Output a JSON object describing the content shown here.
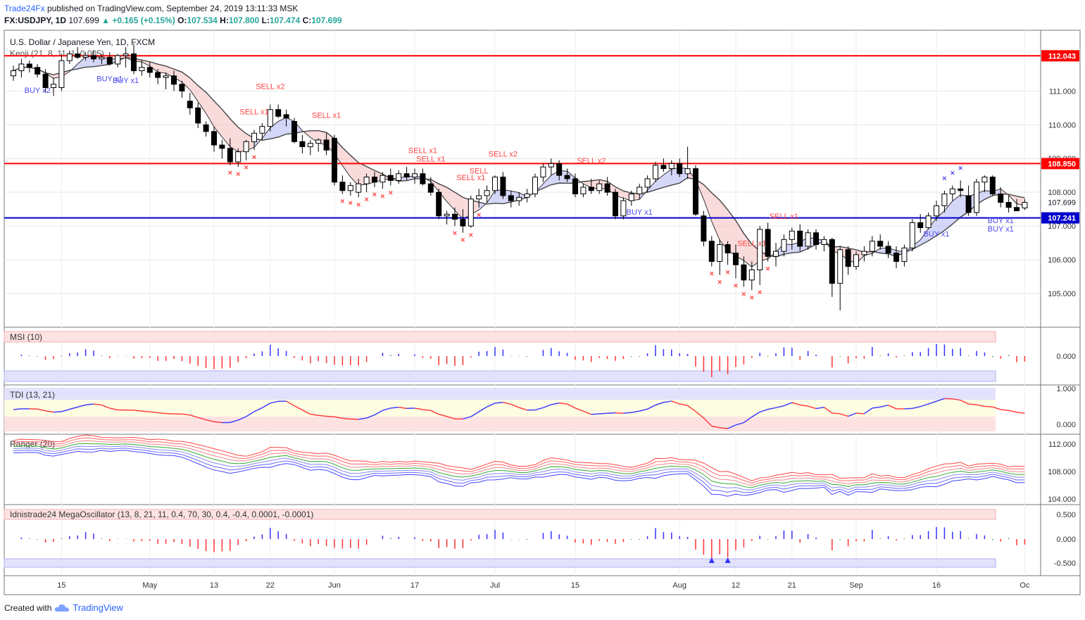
{
  "header": {
    "author": "Trade24Fx",
    "published_text": "published on TradingView.com, September 24, 2019 13:11:33 MSK",
    "symbol": "FX:USDJPY, 1D",
    "last": "107.699",
    "change": "+0.165 (+0.15%)",
    "open_label": "O:",
    "open": "107.534",
    "high_label": "H:",
    "high": "107.800",
    "low_label": "L:",
    "low": "107.474",
    "close_label": "C:",
    "close": "107.699"
  },
  "footer": {
    "created_with": "Created with",
    "brand": "TradingView"
  },
  "colors": {
    "up": "#ffffff",
    "down": "#000000",
    "level_red": "#ff0000",
    "level_blue": "#0000cc",
    "buy": "#3f3fff",
    "sell": "#ff4444",
    "grid": "#e6e6e6",
    "axis": "#555555"
  },
  "chart_data": {
    "type": "candlestick",
    "title": "U.S. Dollar / Japanese Yen, 1D, FXCM",
    "indicator": "Kenji (21, 8, 11, 1, 0.005)",
    "ylim": [
      104.0,
      112.8
    ],
    "y_ticks": [
      "111.000",
      "110.000",
      "109.000",
      "108.000",
      "107.000",
      "106.000",
      "105.000"
    ],
    "x_ticks": [
      {
        "label": "15",
        "i": 6
      },
      {
        "label": "May",
        "i": 17
      },
      {
        "label": "13",
        "i": 25
      },
      {
        "label": "22",
        "i": 32
      },
      {
        "label": "Jun",
        "i": 40
      },
      {
        "label": "17",
        "i": 50
      },
      {
        "label": "Jul",
        "i": 60
      },
      {
        "label": "15",
        "i": 70
      },
      {
        "label": "Aug",
        "i": 83
      },
      {
        "label": "12",
        "i": 90
      },
      {
        "label": "21",
        "i": 97
      },
      {
        "label": "Sep",
        "i": 105
      },
      {
        "label": "16",
        "i": 115
      },
      {
        "label": "Oc",
        "i": 126
      }
    ],
    "levels": [
      {
        "value": 112.043,
        "label": "112.043",
        "color": "#ff0000"
      },
      {
        "value": 108.85,
        "label": "108.850",
        "color": "#ff0000"
      },
      {
        "value": 107.241,
        "label": "107.241",
        "color": "#0000cc"
      }
    ],
    "last_price_label": "107.699",
    "candles": [
      [
        111.45,
        111.75,
        111.3,
        111.6
      ],
      [
        111.6,
        111.95,
        111.4,
        111.8
      ],
      [
        111.8,
        111.9,
        111.55,
        111.7
      ],
      [
        111.7,
        111.8,
        111.4,
        111.5
      ],
      [
        111.5,
        111.65,
        110.95,
        111.1
      ],
      [
        111.1,
        111.4,
        110.85,
        111.2
      ],
      [
        111.1,
        112.1,
        111.0,
        111.9
      ],
      [
        111.9,
        112.2,
        111.8,
        112.1
      ],
      [
        112.1,
        112.3,
        111.95,
        112.0
      ],
      [
        112.0,
        112.15,
        111.9,
        112.05
      ],
      [
        112.05,
        112.2,
        111.85,
        111.95
      ],
      [
        111.95,
        112.1,
        111.8,
        112.0
      ],
      [
        112.0,
        112.15,
        111.75,
        111.8
      ],
      [
        111.8,
        112.1,
        111.7,
        112.05
      ],
      [
        112.05,
        112.3,
        111.7,
        112.1
      ],
      [
        112.1,
        112.4,
        111.5,
        111.6
      ],
      [
        111.6,
        111.9,
        111.45,
        111.7
      ],
      [
        111.7,
        111.85,
        111.4,
        111.55
      ],
      [
        111.55,
        111.65,
        111.2,
        111.4
      ],
      [
        111.4,
        111.55,
        111.05,
        111.45
      ],
      [
        111.45,
        111.6,
        111.0,
        111.2
      ],
      [
        111.2,
        111.3,
        110.8,
        111.0
      ],
      [
        110.7,
        110.95,
        110.3,
        110.5
      ],
      [
        110.5,
        110.65,
        109.9,
        110.05
      ],
      [
        110.0,
        110.1,
        109.65,
        109.8
      ],
      [
        109.8,
        109.95,
        109.2,
        109.4
      ],
      [
        109.4,
        109.55,
        109.0,
        109.3
      ],
      [
        109.3,
        109.6,
        108.8,
        108.9
      ],
      [
        108.9,
        109.3,
        108.75,
        109.2
      ],
      [
        109.2,
        109.55,
        108.95,
        109.5
      ],
      [
        109.5,
        109.85,
        109.25,
        109.75
      ],
      [
        109.75,
        110.05,
        109.55,
        109.95
      ],
      [
        109.95,
        110.6,
        109.8,
        110.45
      ],
      [
        110.45,
        110.6,
        110.2,
        110.25
      ],
      [
        110.3,
        110.45,
        109.95,
        110.2
      ],
      [
        110.1,
        110.2,
        109.45,
        109.5
      ],
      [
        109.5,
        109.7,
        109.15,
        109.35
      ],
      [
        109.35,
        109.55,
        109.1,
        109.45
      ],
      [
        109.45,
        109.6,
        109.2,
        109.55
      ],
      [
        109.55,
        109.75,
        109.1,
        109.25
      ],
      [
        109.6,
        109.7,
        108.2,
        108.3
      ],
      [
        108.3,
        108.5,
        107.95,
        108.05
      ],
      [
        108.05,
        108.3,
        107.9,
        108.2
      ],
      [
        108.0,
        108.4,
        107.85,
        108.25
      ],
      [
        108.25,
        108.55,
        108.0,
        108.45
      ],
      [
        108.45,
        108.6,
        108.15,
        108.3
      ],
      [
        108.3,
        108.6,
        108.1,
        108.5
      ],
      [
        108.5,
        108.7,
        108.2,
        108.35
      ],
      [
        108.35,
        108.65,
        108.25,
        108.55
      ],
      [
        108.55,
        108.75,
        108.35,
        108.45
      ],
      [
        108.45,
        108.7,
        108.25,
        108.55
      ],
      [
        108.55,
        108.7,
        108.2,
        108.25
      ],
      [
        108.25,
        108.45,
        107.9,
        108.0
      ],
      [
        108.0,
        108.1,
        107.2,
        107.3
      ],
      [
        107.3,
        107.45,
        107.05,
        107.35
      ],
      [
        107.35,
        107.55,
        107.0,
        107.2
      ],
      [
        107.2,
        107.5,
        106.8,
        107.0
      ],
      [
        107.0,
        107.9,
        106.95,
        107.8
      ],
      [
        107.8,
        108.1,
        107.55,
        107.9
      ],
      [
        107.9,
        108.2,
        107.7,
        108.05
      ],
      [
        108.05,
        108.5,
        107.95,
        108.45
      ],
      [
        108.45,
        108.6,
        107.8,
        107.9
      ],
      [
        107.9,
        108.05,
        107.55,
        107.75
      ],
      [
        107.75,
        108.0,
        107.6,
        107.85
      ],
      [
        107.85,
        108.1,
        107.7,
        107.95
      ],
      [
        107.95,
        108.55,
        107.85,
        108.45
      ],
      [
        108.45,
        108.85,
        108.3,
        108.75
      ],
      [
        108.75,
        109.0,
        108.5,
        108.85
      ],
      [
        108.85,
        108.95,
        108.35,
        108.5
      ],
      [
        108.5,
        108.7,
        108.3,
        108.4
      ],
      [
        108.4,
        108.55,
        107.85,
        107.95
      ],
      [
        107.95,
        108.25,
        107.85,
        108.15
      ],
      [
        108.15,
        108.4,
        107.95,
        108.05
      ],
      [
        108.05,
        108.35,
        107.95,
        108.25
      ],
      [
        108.25,
        108.45,
        107.9,
        108.0
      ],
      [
        108.0,
        108.1,
        107.2,
        107.3
      ],
      [
        107.3,
        107.85,
        107.2,
        107.75
      ],
      [
        107.75,
        108.05,
        107.6,
        107.95
      ],
      [
        107.95,
        108.25,
        107.8,
        108.15
      ],
      [
        108.15,
        108.5,
        108.0,
        108.4
      ],
      [
        108.4,
        108.9,
        108.3,
        108.8
      ],
      [
        108.8,
        109.0,
        108.6,
        108.7
      ],
      [
        108.7,
        108.95,
        108.5,
        108.85
      ],
      [
        108.85,
        109.0,
        108.45,
        108.55
      ],
      [
        108.55,
        109.35,
        108.4,
        108.7
      ],
      [
        108.7,
        108.8,
        107.3,
        107.35
      ],
      [
        107.3,
        107.45,
        106.4,
        106.55
      ],
      [
        106.55,
        106.7,
        105.8,
        105.95
      ],
      [
        105.95,
        106.6,
        105.55,
        106.45
      ],
      [
        106.45,
        106.55,
        105.85,
        106.2
      ],
      [
        106.2,
        106.45,
        105.45,
        105.85
      ],
      [
        105.85,
        106.1,
        105.2,
        105.4
      ],
      [
        105.4,
        105.95,
        105.1,
        105.7
      ],
      [
        105.7,
        107.0,
        105.25,
        106.9
      ],
      [
        106.9,
        107.1,
        105.95,
        106.1
      ],
      [
        106.1,
        106.5,
        105.8,
        106.25
      ],
      [
        106.25,
        106.75,
        106.1,
        106.6
      ],
      [
        106.6,
        106.95,
        106.3,
        106.85
      ],
      [
        106.85,
        107.05,
        106.25,
        106.4
      ],
      [
        106.4,
        106.9,
        106.3,
        106.8
      ],
      [
        106.8,
        106.9,
        106.3,
        106.45
      ],
      [
        106.45,
        106.7,
        106.25,
        106.6
      ],
      [
        106.6,
        106.65,
        104.9,
        105.3
      ],
      [
        105.3,
        106.4,
        104.5,
        106.3
      ],
      [
        106.3,
        106.4,
        105.55,
        105.8
      ],
      [
        105.8,
        106.25,
        105.7,
        106.15
      ],
      [
        106.15,
        106.4,
        105.95,
        106.25
      ],
      [
        106.25,
        106.7,
        106.1,
        106.55
      ],
      [
        106.55,
        106.75,
        106.3,
        106.4
      ],
      [
        106.4,
        106.55,
        106.05,
        106.2
      ],
      [
        106.2,
        106.4,
        105.75,
        105.95
      ],
      [
        105.95,
        106.45,
        105.8,
        106.35
      ],
      [
        106.35,
        107.2,
        106.25,
        107.1
      ],
      [
        107.1,
        107.35,
        106.8,
        106.95
      ],
      [
        106.95,
        107.4,
        106.9,
        107.3
      ],
      [
        107.3,
        107.75,
        107.15,
        107.6
      ],
      [
        107.6,
        108.05,
        107.4,
        107.95
      ],
      [
        107.95,
        108.2,
        107.75,
        108.1
      ],
      [
        108.1,
        108.35,
        107.85,
        108.05
      ],
      [
        107.9,
        108.2,
        107.3,
        107.4
      ],
      [
        107.4,
        108.4,
        107.3,
        108.3
      ],
      [
        108.3,
        108.5,
        108.0,
        108.45
      ],
      [
        108.45,
        108.5,
        107.9,
        107.95
      ],
      [
        107.95,
        108.15,
        107.55,
        107.7
      ],
      [
        107.7,
        107.9,
        107.4,
        107.55
      ],
      [
        107.55,
        107.8,
        107.45,
        107.45
      ],
      [
        107.534,
        107.8,
        107.474,
        107.699
      ]
    ],
    "markers": [
      {
        "i": 3,
        "text": "BUY x2",
        "type": "buy"
      },
      {
        "i": 12,
        "text": "BUY x1",
        "type": "buy"
      },
      {
        "i": 14,
        "text": "BUY x1",
        "type": "buy"
      },
      {
        "i": 30,
        "text": "SELL x1",
        "type": "sell"
      },
      {
        "i": 32,
        "text": "SELL x2",
        "type": "sell"
      },
      {
        "i": 39,
        "text": "SELL x1",
        "type": "sell"
      },
      {
        "i": 51,
        "text": "SELL x1",
        "type": "sell"
      },
      {
        "i": 52,
        "text": "SELL x1",
        "type": "sell"
      },
      {
        "i": 57,
        "text": "SELL x1",
        "type": "sell"
      },
      {
        "i": 58,
        "text": "SELL",
        "type": "sell"
      },
      {
        "i": 61,
        "text": "SELL x2",
        "type": "sell"
      },
      {
        "i": 72,
        "text": "SELL x2",
        "type": "sell"
      },
      {
        "i": 78,
        "text": "BUY x1",
        "type": "buy"
      },
      {
        "i": 92,
        "text": "SELL x1",
        "type": "sell"
      },
      {
        "i": 96,
        "text": "SELL x1",
        "type": "sell"
      },
      {
        "i": 115,
        "text": "BUY x1",
        "type": "buy"
      },
      {
        "i": 123,
        "text": "BUY x1",
        "type": "buy"
      },
      {
        "i": 123,
        "text": "BUY x1",
        "type": "buy2"
      }
    ],
    "crosses": [
      {
        "i": 27,
        "type": "sell"
      },
      {
        "i": 28,
        "type": "sell"
      },
      {
        "i": 29,
        "type": "sell"
      },
      {
        "i": 30,
        "type": "sell"
      },
      {
        "i": 41,
        "type": "sell"
      },
      {
        "i": 42,
        "type": "sell"
      },
      {
        "i": 43,
        "type": "sell"
      },
      {
        "i": 44,
        "type": "sell"
      },
      {
        "i": 45,
        "type": "sell"
      },
      {
        "i": 46,
        "type": "sell"
      },
      {
        "i": 47,
        "type": "sell"
      },
      {
        "i": 55,
        "type": "sell"
      },
      {
        "i": 56,
        "type": "sell"
      },
      {
        "i": 57,
        "type": "sell"
      },
      {
        "i": 58,
        "type": "sell"
      },
      {
        "i": 87,
        "type": "sell"
      },
      {
        "i": 88,
        "type": "sell"
      },
      {
        "i": 89,
        "type": "sell"
      },
      {
        "i": 90,
        "type": "sell"
      },
      {
        "i": 91,
        "type": "sell"
      },
      {
        "i": 92,
        "type": "sell"
      },
      {
        "i": 93,
        "type": "sell"
      },
      {
        "i": 94,
        "type": "sell"
      },
      {
        "i": 116,
        "type": "buy"
      },
      {
        "i": 117,
        "type": "buy"
      },
      {
        "i": 118,
        "type": "buy"
      }
    ],
    "panels": [
      {
        "name": "MSI (10)",
        "y_ticks": [
          "0.000"
        ]
      },
      {
        "name": "TDI (13, 21)",
        "y_ticks": [
          "1.000",
          "0.000"
        ]
      },
      {
        "name": "Ranger (20)",
        "y_ticks": [
          "112.000",
          "108.000",
          "104.000"
        ]
      },
      {
        "name": "Idnistrade24 MegaOscillator (13, 8, 21, 11, 0.4, 70, 30, 0.4, -0.4, 0.0001, -0.0001)",
        "y_ticks": [
          "0.500",
          "0.000",
          "-0.500"
        ]
      }
    ]
  }
}
